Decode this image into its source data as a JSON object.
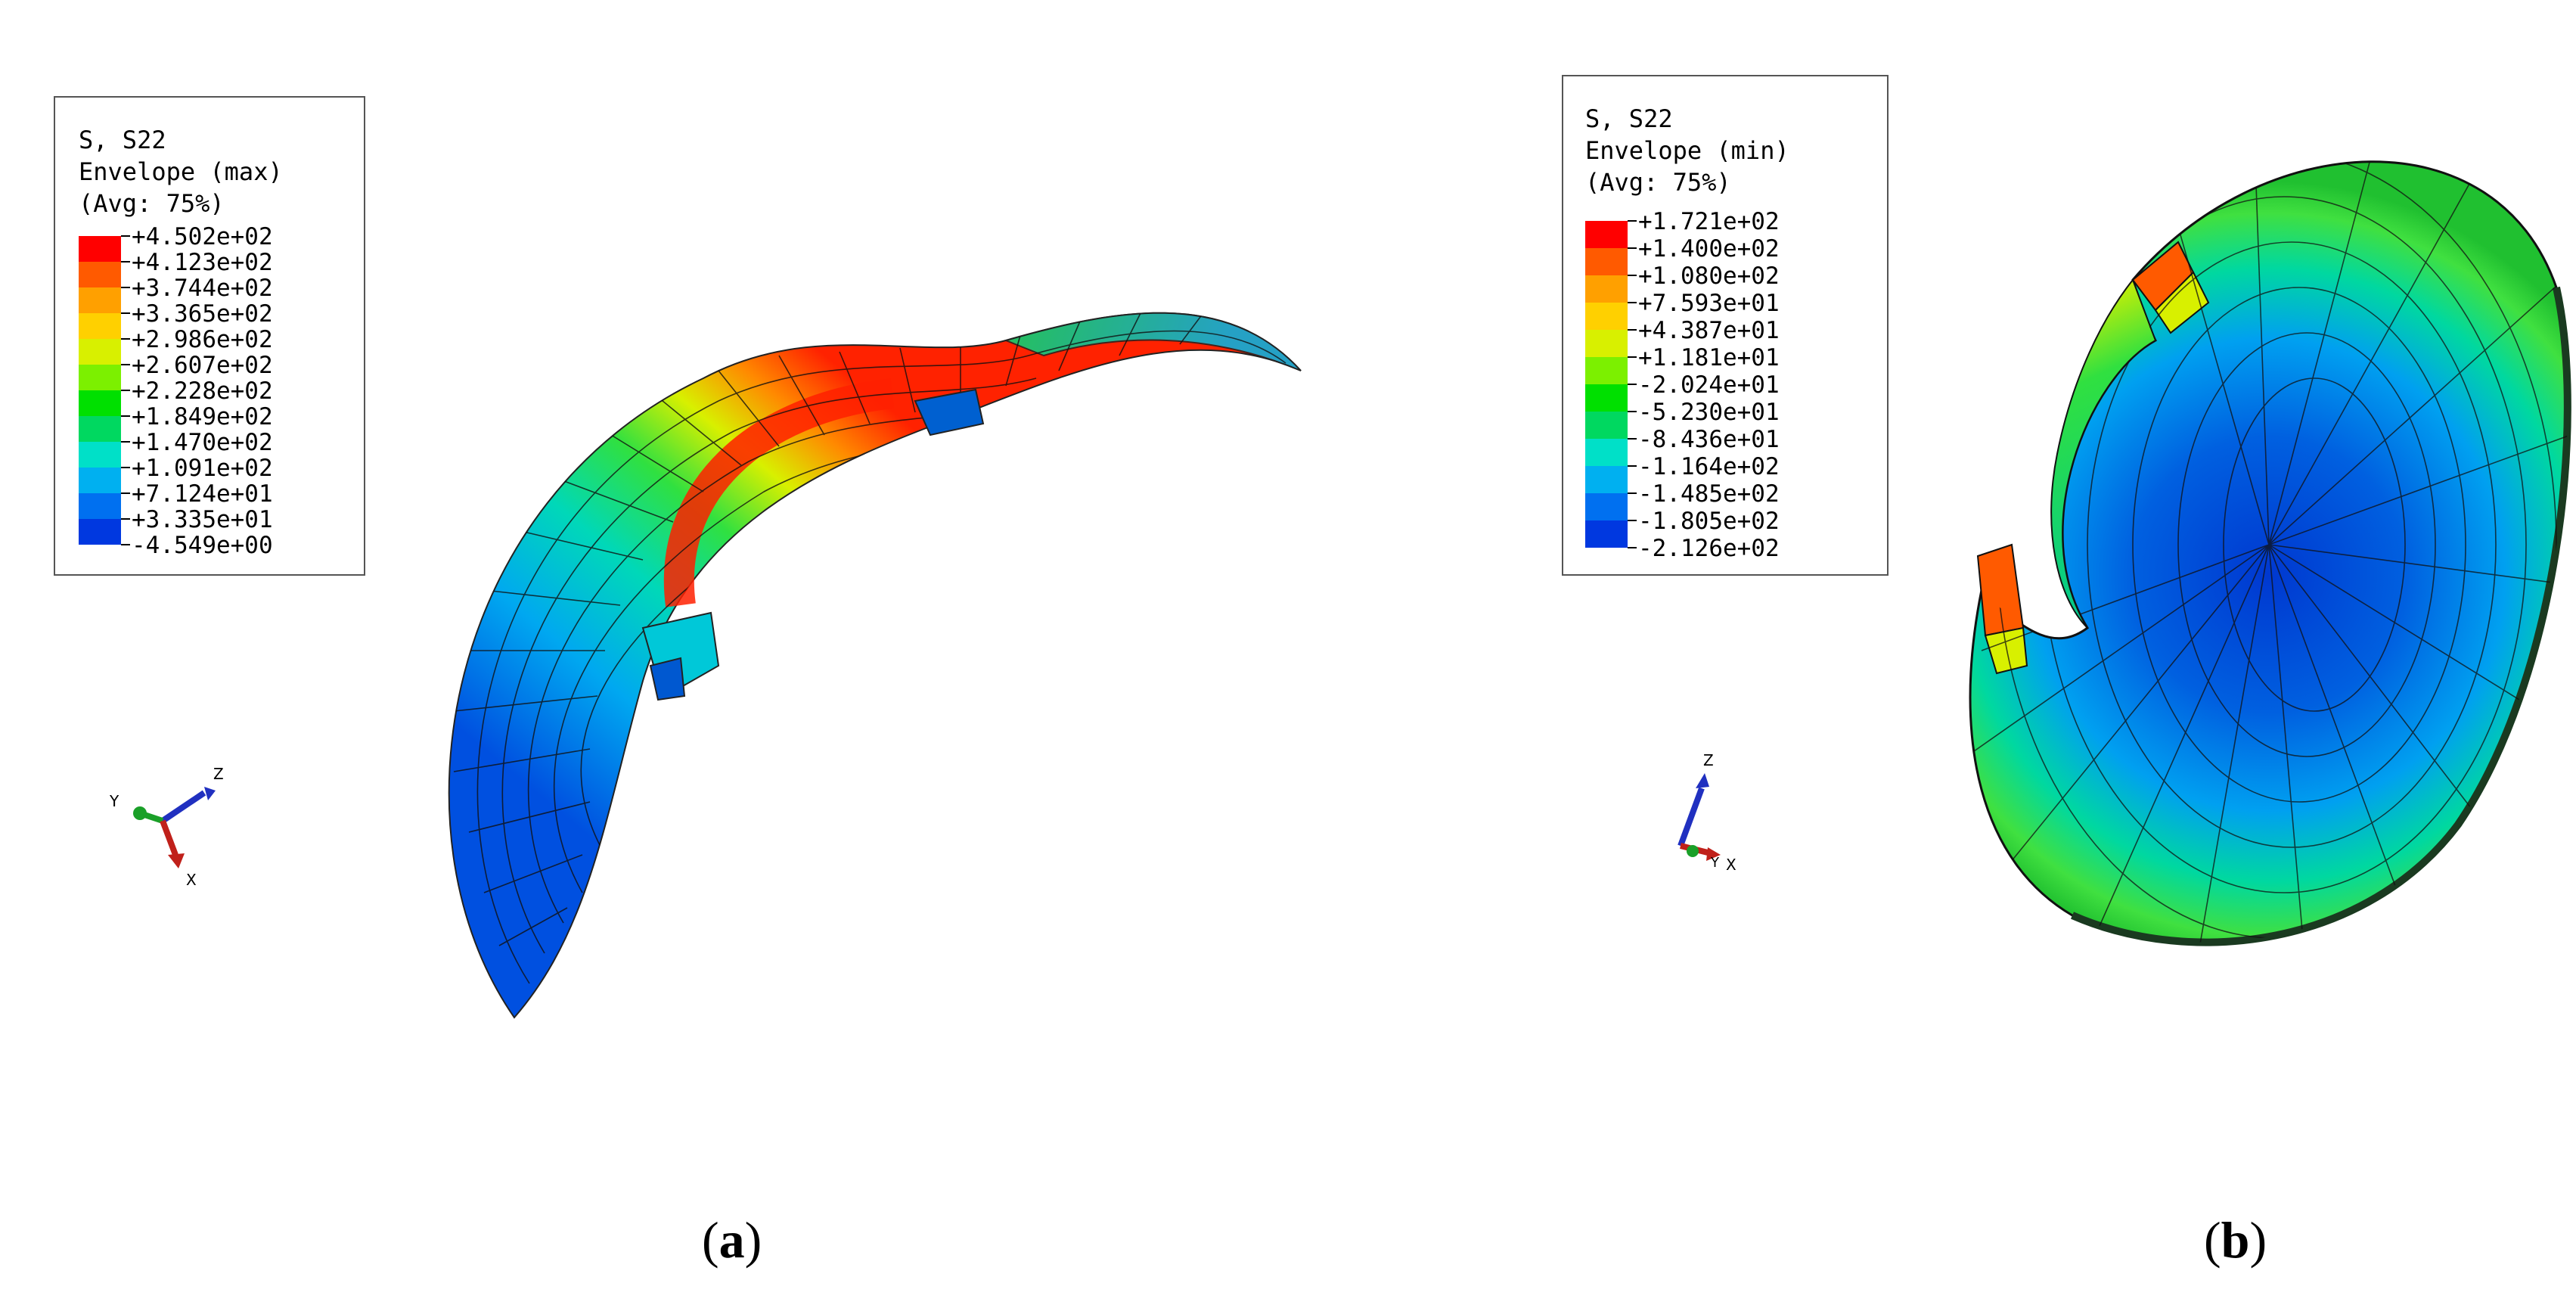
{
  "panels": [
    {
      "id": "a",
      "caption_letter": "a",
      "legend": {
        "line1": "S, S22",
        "line2": "Envelope (max)",
        "line3": "(Avg: 75%)",
        "values": [
          "+4.502e+02",
          "+4.123e+02",
          "+3.744e+02",
          "+3.365e+02",
          "+2.986e+02",
          "+2.607e+02",
          "+2.228e+02",
          "+1.849e+02",
          "+1.470e+02",
          "+1.091e+02",
          "+7.124e+01",
          "+3.335e+01",
          "-4.549e+00"
        ]
      },
      "triad": {
        "x": "X",
        "y": "Y",
        "z": "Z"
      }
    },
    {
      "id": "b",
      "caption_letter": "b",
      "legend": {
        "line1": "S, S22",
        "line2": "Envelope (min)",
        "line3": "(Avg: 75%)",
        "values": [
          "+1.721e+02",
          "+1.400e+02",
          "+1.080e+02",
          "+7.593e+01",
          "+4.387e+01",
          "+1.181e+01",
          "-2.024e+01",
          "-5.230e+01",
          "-8.436e+01",
          "-1.164e+02",
          "-1.485e+02",
          "-1.805e+02",
          "-2.126e+02"
        ]
      },
      "triad": {
        "x": "X",
        "y": "Y",
        "z": "Z"
      }
    }
  ],
  "colors": {
    "contour_scale": [
      "#ff0000",
      "#ff5a00",
      "#ffa000",
      "#ffd000",
      "#d8f000",
      "#7cf000",
      "#00e000",
      "#00d860",
      "#00e0c8",
      "#00b0f0",
      "#0070f0",
      "#0038e0",
      "#0000cc"
    ],
    "mesh_line": "#111111",
    "triad_x": "#c0201a",
    "triad_y": "#1aa028",
    "triad_z": "#2030c0"
  }
}
